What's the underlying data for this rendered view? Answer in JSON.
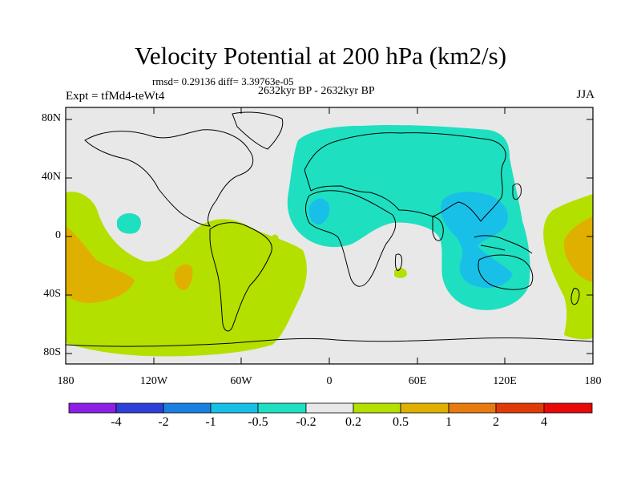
{
  "title": "Velocity Potential at 200 hPa (km2/s)",
  "stats": "rmsd= 0.29136 diff= 3.39763e-05",
  "period": "2632kyr BP - 2632kyr BP",
  "experiment": "Expt = tfMd4-teWt4",
  "season": "JJA",
  "y_axis_labels": [
    "80N",
    "40N",
    "0",
    "40S",
    "80S"
  ],
  "x_axis_labels": [
    "180",
    "120W",
    "60W",
    "0",
    "60E",
    "120E",
    "180"
  ],
  "colorbar": {
    "labels": [
      "-4",
      "-2",
      "-1",
      "-0.5",
      "-0.2",
      "0.2",
      "0.5",
      "1",
      "2",
      "4"
    ],
    "colors": [
      "#8c1ee6",
      "#2d3fd8",
      "#1a80e0",
      "#18c0e8",
      "#1ee0c0",
      "#e8e8e8",
      "#b4e000",
      "#e0b000",
      "#e87a10",
      "#e03a08",
      "#e80808"
    ]
  },
  "field_colors": {
    "land_background": "#e8e8e8",
    "negative_weak": "#1ee0c0",
    "negative_moderate": "#18c0e8",
    "positive_weak": "#b4e000",
    "positive_moderate": "#e0b000"
  }
}
